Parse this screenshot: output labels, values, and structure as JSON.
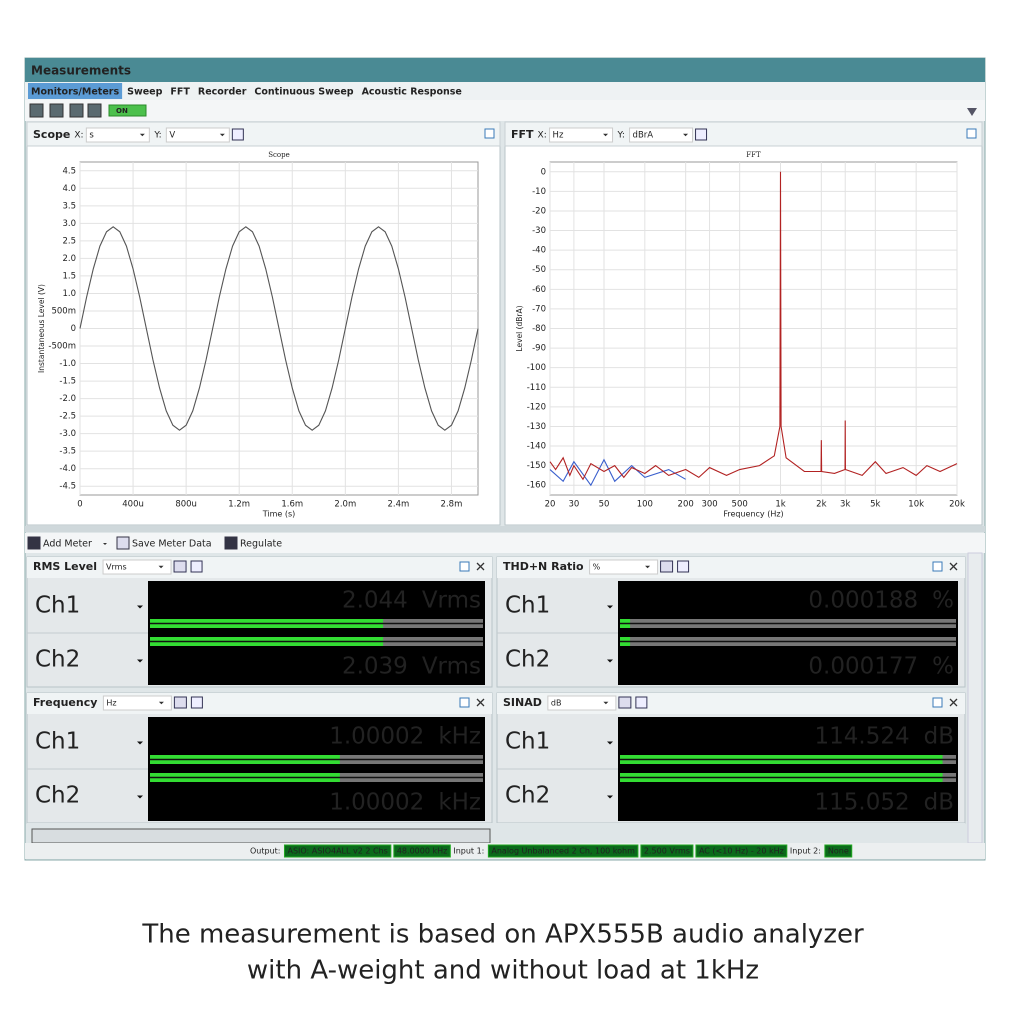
{
  "window": {
    "title": "Measurements",
    "tabs": [
      "Monitors/Meters",
      "Sweep",
      "FFT",
      "Recorder",
      "Continuous Sweep",
      "Acoustic Response"
    ],
    "toggle": "ON"
  },
  "scope": {
    "panel_title": "Scope",
    "x_label": "X:",
    "x_unit": "s",
    "y_label": "Y:",
    "y_unit": "V",
    "chart_data": {
      "type": "line",
      "title": "Scope",
      "x_axis_label": "Time (s)",
      "y_axis_label": "Instantaneous Level (V)",
      "color": "#555555",
      "grid": true,
      "x": [
        0,
        5e-05,
        0.0001,
        0.00015,
        0.0002,
        0.00025,
        0.0003,
        0.00035,
        0.0004,
        0.00045,
        0.0005,
        0.00055,
        0.0006,
        0.00065,
        0.0007,
        0.00075,
        0.0008,
        0.00085,
        0.0009,
        0.00095,
        0.001,
        0.00105,
        0.0011,
        0.00115,
        0.0012,
        0.00125,
        0.0013,
        0.00135,
        0.0014,
        0.00145,
        0.0015,
        0.00155,
        0.0016,
        0.00165,
        0.0017,
        0.00175,
        0.0018,
        0.00185,
        0.0019,
        0.00195,
        0.002,
        0.00205,
        0.0021,
        0.00215,
        0.0022,
        0.00225,
        0.0023,
        0.00235,
        0.0024,
        0.00245,
        0.0025,
        0.00255,
        0.0026,
        0.00265,
        0.0027,
        0.00275,
        0.0028,
        0.00285,
        0.0029,
        0.00295,
        0.003
      ],
      "values": [
        0,
        0.9,
        1.7,
        2.35,
        2.76,
        2.9,
        2.76,
        2.35,
        1.7,
        0.9,
        0,
        -0.9,
        -1.7,
        -2.35,
        -2.76,
        -2.9,
        -2.76,
        -2.35,
        -1.7,
        -0.9,
        0,
        0.9,
        1.7,
        2.35,
        2.76,
        2.9,
        2.76,
        2.35,
        1.7,
        0.9,
        0,
        -0.9,
        -1.7,
        -2.35,
        -2.76,
        -2.9,
        -2.76,
        -2.35,
        -1.7,
        -0.9,
        0,
        0.9,
        1.7,
        2.35,
        2.76,
        2.9,
        2.76,
        2.35,
        1.7,
        0.9,
        0,
        -0.9,
        -1.7,
        -2.35,
        -2.76,
        -2.9,
        -2.76,
        -2.35,
        -1.7,
        -0.9,
        0
      ],
      "xlim": [
        0,
        0.003
      ],
      "ylim": [
        -4.75,
        4.75
      ],
      "xticks": [
        0,
        {
          "value": 0.0004,
          "label": "400u"
        },
        {
          "value": 0.0008,
          "label": "800u"
        },
        {
          "value": 0.0012,
          "label": "1.2m"
        },
        {
          "value": 0.0016,
          "label": "1.6m"
        },
        {
          "value": 0.002,
          "label": "2.0m"
        },
        {
          "value": 0.0024,
          "label": "2.4m"
        },
        {
          "value": 0.0028,
          "label": "2.8m"
        }
      ],
      "yticks": [
        4.5,
        {
          "value": 4,
          "label": "4.0"
        },
        3.5,
        {
          "value": 3,
          "label": "3.0"
        },
        2.5,
        {
          "value": 2,
          "label": "2.0"
        },
        1.5,
        {
          "value": 1,
          "label": "1.0"
        },
        {
          "value": 0.5,
          "label": "500m"
        },
        0,
        {
          "value": -0.5,
          "label": "-500m"
        },
        {
          "value": -1,
          "label": "-1.0"
        },
        -1.5,
        {
          "value": -2,
          "label": "-2.0"
        },
        -2.5,
        {
          "value": -3,
          "label": "-3.0"
        },
        -3.5,
        {
          "value": -4,
          "label": "-4.0"
        },
        -4.5
      ]
    }
  },
  "fft": {
    "panel_title": "FFT",
    "x_label": "X:",
    "x_unit": "Hz",
    "y_label": "Y:",
    "y_unit": "dBrA",
    "chart_data": {
      "type": "line",
      "title": "FFT",
      "x_axis_label": "Frequency (Hz)",
      "y_axis_label": "Level (dBrA)",
      "x_log": true,
      "grid": true,
      "series": [
        {
          "color": "#3a5fcd",
          "x": [
            20,
            25,
            30,
            40,
            50,
            60,
            80,
            100,
            150,
            200
          ],
          "values": [
            -152,
            -158,
            -148,
            -160,
            -147,
            -158,
            -150,
            -156,
            -152,
            -157
          ]
        },
        {
          "color": "#b22222",
          "x": [
            20,
            22,
            25,
            28,
            30,
            35,
            40,
            50,
            60,
            70,
            80,
            100,
            120,
            150,
            200,
            250,
            300,
            400,
            500,
            700,
            900,
            990,
            1000,
            1010,
            1100,
            1500,
            1990,
            2000,
            2010,
            2500,
            2990,
            3000,
            3010,
            4000,
            5000,
            6000,
            8000,
            10000,
            12000,
            15000,
            20000
          ],
          "values": [
            -148,
            -152,
            -146,
            -155,
            -150,
            -157,
            -149,
            -153,
            -150,
            -156,
            -151,
            -154,
            -150,
            -155,
            -152,
            -156,
            -151,
            -155,
            -152,
            -150,
            -145,
            -130,
            0,
            -130,
            -146,
            -153,
            -153,
            -137,
            -153,
            -154,
            -152,
            -127,
            -152,
            -155,
            -148,
            -154,
            -151,
            -155,
            -150,
            -153,
            -149
          ]
        }
      ],
      "xlim": [
        20,
        20000
      ],
      "ylim": [
        -165,
        5
      ],
      "xticks": [
        20,
        30,
        50,
        100,
        200,
        300,
        500,
        {
          "value": 1000,
          "label": "1k"
        },
        {
          "value": 2000,
          "label": "2k"
        },
        {
          "value": 3000,
          "label": "3k"
        },
        {
          "value": 5000,
          "label": "5k"
        },
        {
          "value": 10000,
          "label": "10k"
        },
        {
          "value": 20000,
          "label": "20k"
        }
      ],
      "yticks": [
        0,
        -10,
        -20,
        -30,
        -40,
        -50,
        -60,
        -70,
        -80,
        -90,
        -100,
        -110,
        -120,
        -130,
        -140,
        -150,
        -160
      ]
    }
  },
  "meter_toolbar": [
    "Add Meter",
    "Save Meter Data",
    "Regulate"
  ],
  "meters": [
    {
      "title": "RMS Level",
      "unit_select": "Vrms",
      "channels": [
        {
          "name": "Ch1",
          "value": "2.044",
          "unit": "Vrms"
        },
        {
          "name": "Ch2",
          "value": "2.039",
          "unit": "Vrms"
        }
      ]
    },
    {
      "title": "THD+N Ratio",
      "unit_select": "%",
      "channels": [
        {
          "name": "Ch1",
          "value": "0.000188",
          "unit": "%"
        },
        {
          "name": "Ch2",
          "value": "0.000177",
          "unit": "%"
        }
      ]
    },
    {
      "title": "Frequency",
      "unit_select": "Hz",
      "channels": [
        {
          "name": "Ch1",
          "value": "1.00002",
          "unit": "kHz"
        },
        {
          "name": "Ch2",
          "value": "1.00002",
          "unit": "kHz"
        }
      ]
    },
    {
      "title": "SINAD",
      "unit_select": "dB",
      "channels": [
        {
          "name": "Ch1",
          "value": "114.524",
          "unit": "dB"
        },
        {
          "name": "Ch2",
          "value": "115.052",
          "unit": "dB"
        }
      ]
    }
  ],
  "status": {
    "output_label": "Output:",
    "output": [
      "ASIO: ASIO4ALL v2 2 Chs",
      "48.0000 kHz"
    ],
    "input1_label": "Input 1:",
    "input1": [
      "Analog Unbalanced 2 Ch, 100 kohm",
      "2.500 Vrms",
      "AC (<10 Hz) - 20 kHz"
    ],
    "input2_label": "Input 2:",
    "input2": [
      "None"
    ]
  },
  "caption": [
    "The measurement is based on APX555B audio analyzer",
    "with A-weight and without load at 1kHz"
  ]
}
